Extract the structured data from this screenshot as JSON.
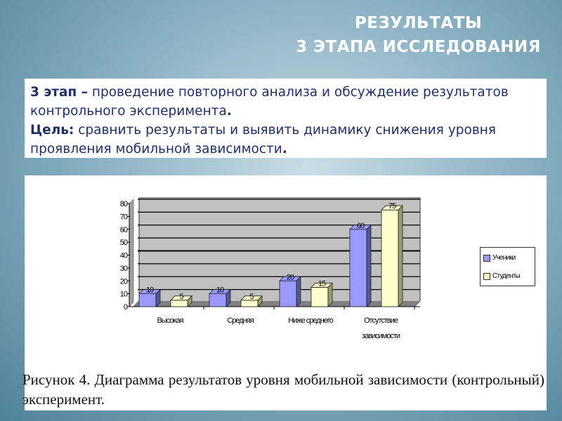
{
  "slide": {
    "title_line1": "РЕЗУЛЬТАТЫ",
    "title_line2": "3 ЭТАПА ИССЛЕДОВАНИЯ"
  },
  "textbox": {
    "stage_label": "3 этап –",
    "stage_text": " проведение повторного анализа и обсуждение результатов контрольного эксперимента",
    "goal_label": "Цель:",
    "goal_text": " сравнить результаты и выявить динамику снижения уровня проявления мобильной зависимости"
  },
  "caption": "Рисунок 4. Диаграмма результатов уровня мобильной зависимости (контрольный) эксперимент.",
  "chart_data": {
    "type": "bar",
    "categories": [
      "Высокая",
      "Средняя",
      "Ниже среднего",
      "Отсутствие зависимости"
    ],
    "series": [
      {
        "name": "Ученики",
        "values": [
          10,
          10,
          20,
          60
        ],
        "color": "#9999ff"
      },
      {
        "name": "Студенты",
        "values": [
          5,
          5,
          15,
          75
        ],
        "color": "#ffffcc"
      }
    ],
    "ylim": [
      0,
      80
    ],
    "yticks": [
      0,
      10,
      20,
      30,
      40,
      50,
      60,
      70,
      80
    ],
    "grid": true,
    "legend": "right",
    "style": "3d"
  }
}
